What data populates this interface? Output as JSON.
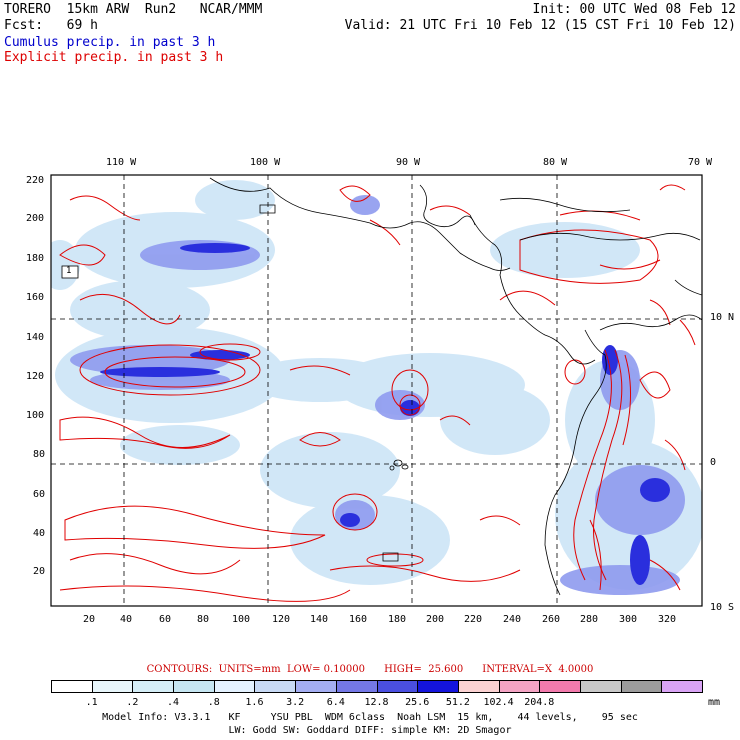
{
  "header": {
    "model": "TORERO",
    "resolution": "15km ARW",
    "run": "Run2",
    "center": "NCAR/MMM",
    "init": "Init: 00 UTC Wed 08 Feb 12",
    "fcst_label": "Fcst:",
    "fcst_value": "69 h",
    "valid": "Valid: 21 UTC Fri 10 Feb 12 (15 CST Fri 10 Feb 12)",
    "field1": "Cumulus precip. in past 3 h",
    "field2": "Explicit precip. in past 3 h"
  },
  "map": {
    "top_lon_labels": [
      "110 W",
      "100 W",
      "90 W",
      "80 W",
      "70 W"
    ],
    "right_lat_labels": [
      "10 N",
      "0",
      "10 S"
    ],
    "left_ticks": [
      "220",
      "200",
      "180",
      "160",
      "140",
      "120",
      "100",
      "80",
      "60",
      "40",
      "20"
    ],
    "bottom_ticks": [
      "20",
      "40",
      "60",
      "80",
      "100",
      "120",
      "140",
      "160",
      "180",
      "200",
      "220",
      "240",
      "260",
      "280",
      "300",
      "320"
    ],
    "box_label": "1"
  },
  "contours": {
    "units": "CONTOURS:  UNITS=mm  LOW= 0.10000",
    "high": "HIGH=  25.600",
    "interval": "INTERVAL=X  4.0000"
  },
  "colorbar": {
    "colors": [
      "#ffffff",
      "#e8f6fb",
      "#d5eef7",
      "#c6e6f2",
      "#e4f2ff",
      "#c8daf5",
      "#a4aef2",
      "#7478e6",
      "#4a4fe0",
      "#1414dc",
      "#fbd2d2",
      "#f4a4c4",
      "#f27aac",
      "#c8c8c8",
      "#9c9c9c",
      "#d9a4f5"
    ],
    "labels": [
      ".1",
      ".2",
      ".4",
      ".8",
      "1.6",
      "3.2",
      "6.4",
      "12.8",
      "25.6",
      "51.2",
      "102.4",
      "204.8"
    ],
    "unit": "mm"
  },
  "footer": {
    "line1": "Model Info: V3.3.1   KF     YSU PBL  WDM 6class  Noah LSM  15 km,    44 levels,    95 sec",
    "line2": "LW: Godd SW: Goddard DIFF: simple KM: 2D Smagor"
  }
}
